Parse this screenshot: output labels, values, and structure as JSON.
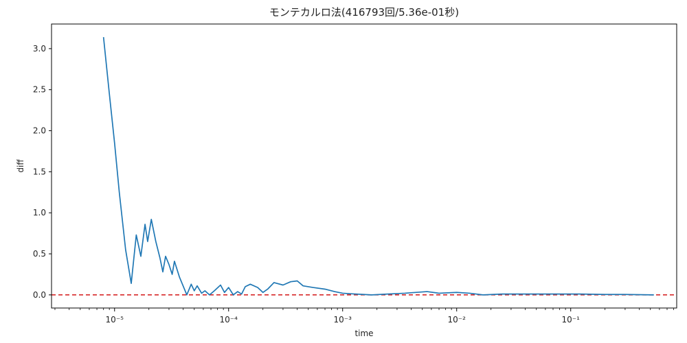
{
  "chart_data": {
    "type": "line",
    "title": "モンテカルロ法(416793回/5.36e-01秒)",
    "xlabel": "time",
    "ylabel": "diff",
    "xscale": "log",
    "xlim": [
      2.8e-06,
      0.85
    ],
    "ylim": [
      -0.16,
      3.3
    ],
    "xticks": [
      {
        "value": 1e-05,
        "label": "10⁻⁵"
      },
      {
        "value": 0.0001,
        "label": "10⁻⁴"
      },
      {
        "value": 0.001,
        "label": "10⁻³"
      },
      {
        "value": 0.01,
        "label": "10⁻²"
      },
      {
        "value": 0.1,
        "label": "10⁻¹"
      }
    ],
    "yticks": [
      {
        "value": 0.0,
        "label": "0.0"
      },
      {
        "value": 0.5,
        "label": "0.5"
      },
      {
        "value": 1.0,
        "label": "1.0"
      },
      {
        "value": 1.5,
        "label": "1.5"
      },
      {
        "value": 2.0,
        "label": "2.0"
      },
      {
        "value": 2.5,
        "label": "2.5"
      },
      {
        "value": 3.0,
        "label": "3.0"
      }
    ],
    "reference_line": {
      "y": 0.0,
      "color": "#d62728",
      "style": "dashed"
    },
    "series": [
      {
        "color": "#1f77b4",
        "points": [
          [
            8e-06,
            3.14
          ],
          [
            9e-06,
            2.45
          ],
          [
            1e-05,
            1.85
          ],
          [
            1.1e-05,
            1.25
          ],
          [
            1.25e-05,
            0.55
          ],
          [
            1.4e-05,
            0.14
          ],
          [
            1.55e-05,
            0.73
          ],
          [
            1.7e-05,
            0.47
          ],
          [
            1.85e-05,
            0.86
          ],
          [
            1.95e-05,
            0.65
          ],
          [
            2.1e-05,
            0.92
          ],
          [
            2.3e-05,
            0.65
          ],
          [
            2.5e-05,
            0.45
          ],
          [
            2.65e-05,
            0.28
          ],
          [
            2.8e-05,
            0.47
          ],
          [
            3e-05,
            0.37
          ],
          [
            3.2e-05,
            0.25
          ],
          [
            3.35e-05,
            0.41
          ],
          [
            3.7e-05,
            0.22
          ],
          [
            4.3e-05,
            0.0
          ],
          [
            4.7e-05,
            0.13
          ],
          [
            5e-05,
            0.05
          ],
          [
            5.3e-05,
            0.11
          ],
          [
            5.8e-05,
            0.02
          ],
          [
            6.2e-05,
            0.05
          ],
          [
            6.8e-05,
            0.0
          ],
          [
            7.5e-05,
            0.05
          ],
          [
            8.5e-05,
            0.12
          ],
          [
            9.2e-05,
            0.03
          ],
          [
            0.0001,
            0.09
          ],
          [
            0.00011,
            0.0
          ],
          [
            0.00012,
            0.04
          ],
          [
            0.00013,
            0.01
          ],
          [
            0.00014,
            0.1
          ],
          [
            0.000155,
            0.13
          ],
          [
            0.00018,
            0.09
          ],
          [
            0.0002,
            0.03
          ],
          [
            0.00022,
            0.07
          ],
          [
            0.00025,
            0.15
          ],
          [
            0.0003,
            0.12
          ],
          [
            0.00035,
            0.16
          ],
          [
            0.0004,
            0.17
          ],
          [
            0.00045,
            0.11
          ],
          [
            0.00055,
            0.09
          ],
          [
            0.0007,
            0.07
          ],
          [
            0.00085,
            0.04
          ],
          [
            0.001,
            0.02
          ],
          [
            0.0013,
            0.01
          ],
          [
            0.0018,
            0.0
          ],
          [
            0.0025,
            0.01
          ],
          [
            0.0035,
            0.02
          ],
          [
            0.0055,
            0.04
          ],
          [
            0.007,
            0.02
          ],
          [
            0.01,
            0.03
          ],
          [
            0.013,
            0.02
          ],
          [
            0.017,
            0.0
          ],
          [
            0.025,
            0.01
          ],
          [
            0.04,
            0.01
          ],
          [
            0.07,
            0.01
          ],
          [
            0.12,
            0.01
          ],
          [
            0.2,
            0.005
          ],
          [
            0.3,
            0.005
          ],
          [
            0.536,
            0.0
          ]
        ]
      }
    ]
  }
}
